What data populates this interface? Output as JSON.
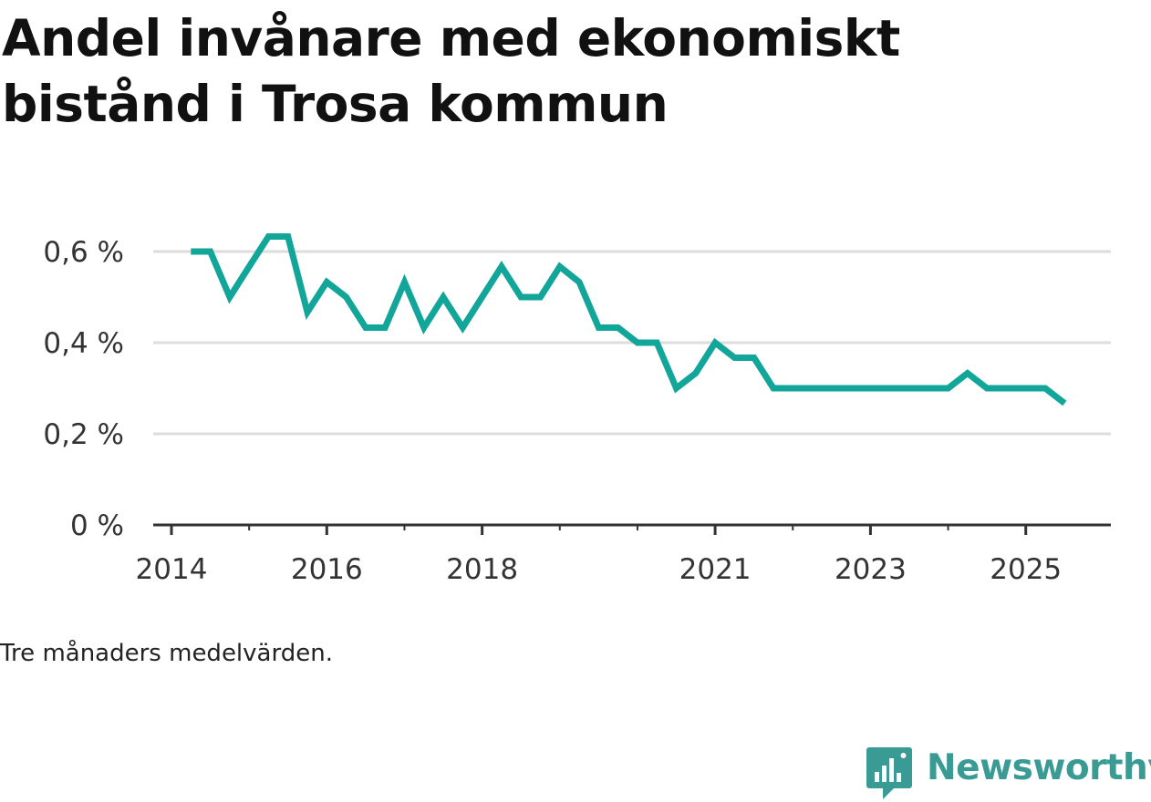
{
  "title": "Andel invånare med ekonomiskt bistånd i Trosa kommun",
  "note": "Tre månaders medelvärden.",
  "brand": {
    "name": "Newsworthy",
    "icon": "newsworthy-logo-icon",
    "color": "#3a9b94"
  },
  "colors": {
    "line": "#12a59a",
    "grid": "#dddddd",
    "axis": "#333333"
  },
  "chart_data": {
    "type": "line",
    "title": "Andel invånare med ekonomiskt bistånd i Trosa kommun",
    "xlabel": "",
    "ylabel": "",
    "ylim": [
      0,
      0.7
    ],
    "xlim": [
      2014.0,
      2025.25
    ],
    "yticks": [
      {
        "value": 0,
        "label": "0 %"
      },
      {
        "value": 0.2,
        "label": "0,2 %"
      },
      {
        "value": 0.4,
        "label": "0,4 %"
      },
      {
        "value": 0.6,
        "label": "0,6 %"
      }
    ],
    "xticks": [
      {
        "value": 2014.0,
        "label": "2014"
      },
      {
        "value": 2016.0,
        "label": "2016"
      },
      {
        "value": 2018.0,
        "label": "2018"
      },
      {
        "value": 2021.0,
        "label": "2021"
      },
      {
        "value": 2023.0,
        "label": "2023"
      },
      {
        "value": 2025.0,
        "label": "2025"
      }
    ],
    "minor_xticks": [
      2015.0,
      2017.0,
      2019.0,
      2020.0,
      2022.0,
      2024.0
    ],
    "series": [
      {
        "name": "Andel invånare med ekonomiskt bistånd",
        "x": [
          2014.25,
          2014.5,
          2014.75,
          2015.0,
          2015.25,
          2015.5,
          2015.75,
          2016.0,
          2016.25,
          2016.5,
          2016.75,
          2017.0,
          2017.25,
          2017.5,
          2017.75,
          2018.0,
          2018.25,
          2018.5,
          2018.75,
          2019.0,
          2019.25,
          2019.5,
          2019.75,
          2020.0,
          2020.25,
          2020.5,
          2020.75,
          2021.0,
          2021.25,
          2021.5,
          2021.75,
          2022.0,
          2022.25,
          2022.5,
          2022.75,
          2023.0,
          2023.25,
          2023.5,
          2023.75,
          2024.0,
          2024.25,
          2024.5,
          2024.75,
          2025.0,
          2025.25,
          2025.5
        ],
        "values": [
          0.6,
          0.6,
          0.5,
          0.567,
          0.633,
          0.633,
          0.467,
          0.533,
          0.5,
          0.433,
          0.433,
          0.533,
          0.433,
          0.5,
          0.433,
          0.5,
          0.567,
          0.5,
          0.5,
          0.567,
          0.533,
          0.433,
          0.433,
          0.4,
          0.4,
          0.3,
          0.333,
          0.4,
          0.367,
          0.367,
          0.3,
          0.3,
          0.3,
          0.3,
          0.3,
          0.3,
          0.3,
          0.3,
          0.3,
          0.3,
          0.333,
          0.3,
          0.3,
          0.3,
          0.3,
          0.267
        ]
      }
    ]
  }
}
